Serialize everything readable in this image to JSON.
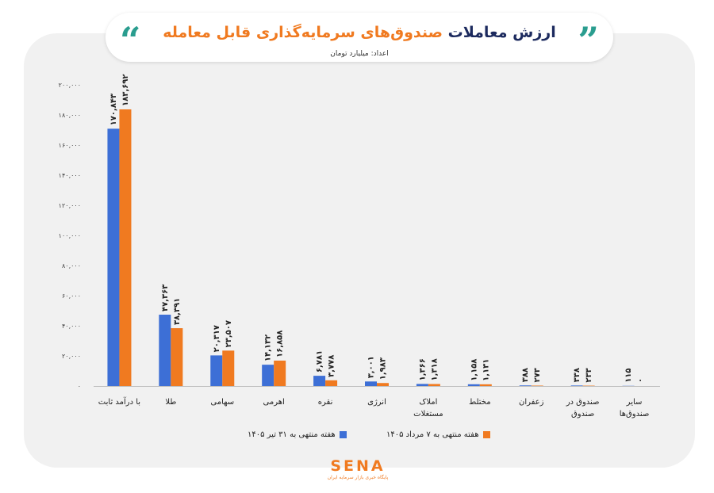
{
  "header": {
    "title_part1": "ارزش معاملات",
    "title_part2": "صندوق‌های سرمایه‌گذاری قابل معامله",
    "subtitle": "اعداد: میلیارد تومان"
  },
  "chart_data": {
    "type": "bar",
    "title": "ارزش معاملات صندوق‌های سرمایه‌گذاری قابل معامله",
    "ylabel": "",
    "xlabel": "",
    "ylim": [
      0,
      200000
    ],
    "yticks": [
      0,
      20000,
      40000,
      60000,
      80000,
      100000,
      120000,
      140000,
      160000,
      180000,
      200000
    ],
    "ytick_labels": [
      "۰",
      "۲۰,۰۰۰",
      "۴۰,۰۰۰",
      "۶۰,۰۰۰",
      "۸۰,۰۰۰",
      "۱۰۰,۰۰۰",
      "۱۲۰,۰۰۰",
      "۱۴۰,۰۰۰",
      "۱۶۰,۰۰۰",
      "۱۸۰,۰۰۰",
      "۲۰۰,۰۰۰"
    ],
    "categories": [
      "با درآمد ثابت",
      "طلا",
      "سهامی",
      "اهرمی",
      "نقره",
      "انرژی",
      "املاک مستغلات",
      "مختلط",
      "زعفران",
      "صندوق در صندوق",
      "سایر صندوق‌ها"
    ],
    "category_lines": [
      [
        "با درآمد ثابت"
      ],
      [
        "طلا"
      ],
      [
        "سهامی"
      ],
      [
        "اهرمی"
      ],
      [
        "نقره"
      ],
      [
        "انرژی"
      ],
      [
        "املاک",
        "مستغلات"
      ],
      [
        "مختلط"
      ],
      [
        "زعفران"
      ],
      [
        "صندوق در",
        "صندوق"
      ],
      [
        "سایر",
        "صندوق‌ها"
      ]
    ],
    "series": [
      {
        "name": "هفته منتهی به ۳۱ تیر ۱۴۰۵",
        "color": "#3d6fd6",
        "values": [
          170843,
          47363,
          20317,
          14132,
          6781,
          3001,
          1366,
          1158,
          388,
          338,
          115
        ],
        "labels": [
          "۱۷۰,۸۴۳",
          "۴۷,۳۶۳",
          "۲۰,۳۱۷",
          "۱۴,۱۳۲",
          "۶,۷۸۱",
          "۳,۰۰۱",
          "۱,۳۶۶",
          "۱,۱۵۸",
          "۳۸۸",
          "۳۳۸",
          "۱۱۵"
        ]
      },
      {
        "name": "هفته منتهی به ۷ مرداد ۱۴۰۵",
        "color": "#f07a20",
        "values": [
          183692,
          38391,
          23507,
          16858,
          3778,
          1983,
          1318,
          1131,
          273,
          233,
          0
        ],
        "labels": [
          "۱۸۳,۶۹۲",
          "۳۸,۳۹۱",
          "۲۳,۵۰۷",
          "۱۶,۸۵۸",
          "۳,۷۷۸",
          "۱,۹۸۳",
          "۱,۳۱۸",
          "۱,۱۳۱",
          "۲۷۳",
          "۲۳۳",
          "۰"
        ]
      }
    ],
    "legend_position": "bottom",
    "grid": false
  },
  "logo": {
    "word": "SENA",
    "tagline": "پایگاه خبری بازار سرمایه ایران"
  }
}
